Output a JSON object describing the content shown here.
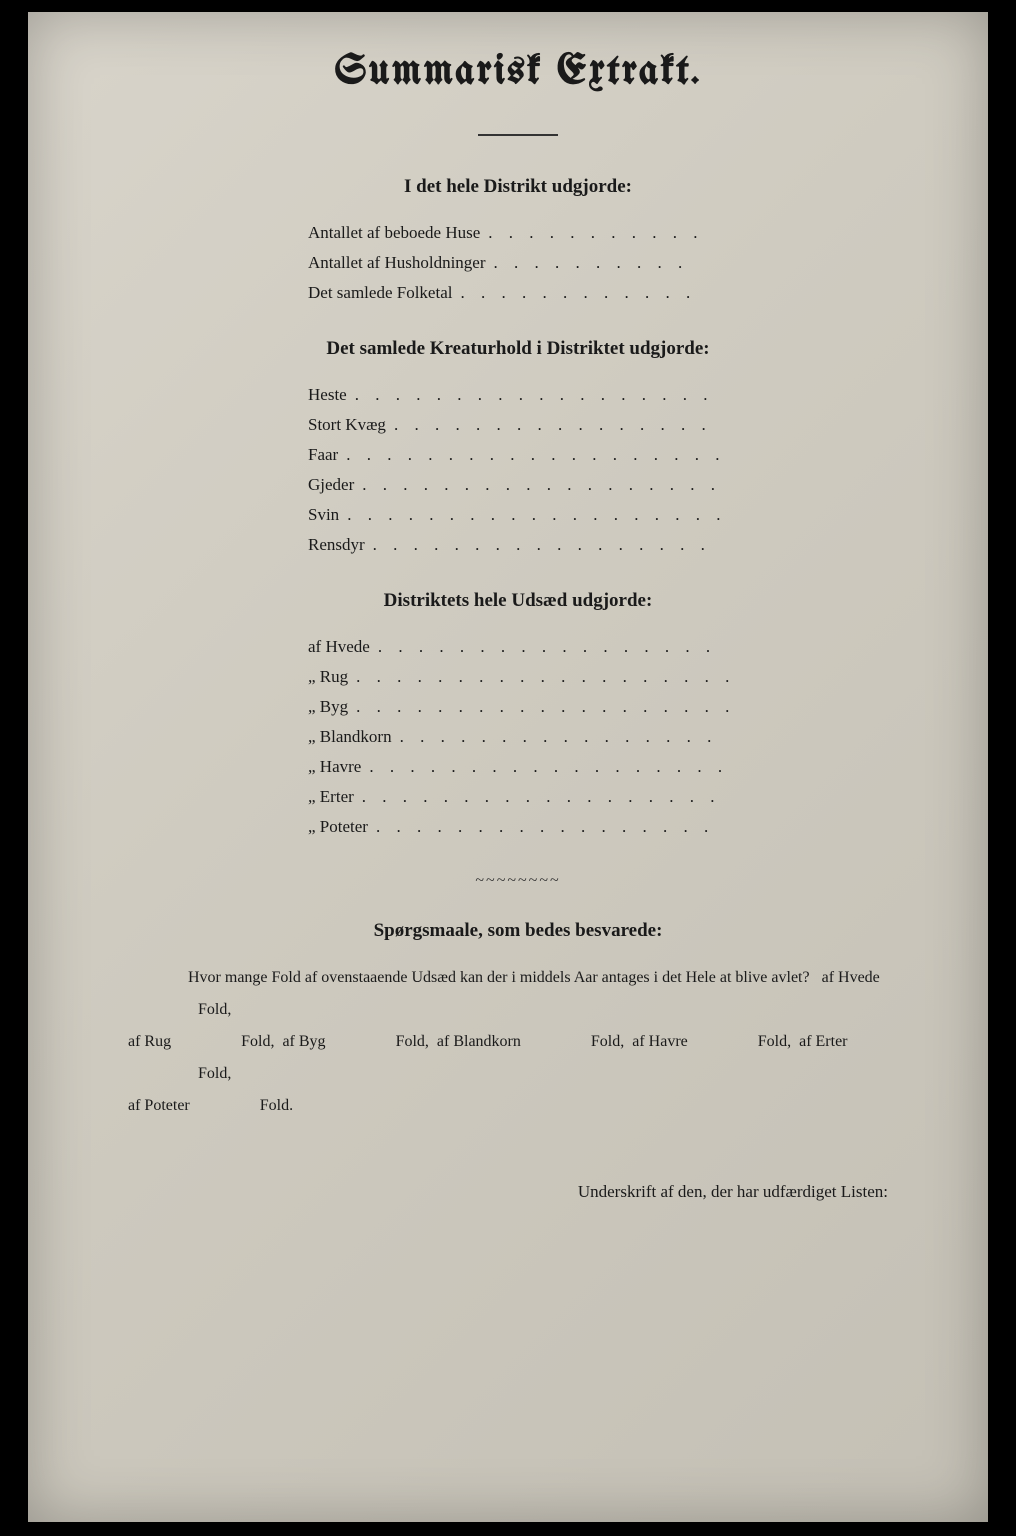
{
  "title": "Summarisk Extrakt.",
  "section1": {
    "heading": "I det hele Distrikt udgjorde:",
    "items": [
      "Antallet af beboede Huse",
      "Antallet af Husholdninger",
      "Det samlede Folketal"
    ]
  },
  "section2": {
    "heading": "Det samlede Kreaturhold i Distriktet udgjorde:",
    "items": [
      "Heste",
      "Stort Kvæg",
      "Faar",
      "Gjeder",
      "Svin",
      "Rensdyr"
    ]
  },
  "section3": {
    "heading": "Distriktets hele Udsæd udgjorde:",
    "items": [
      "af Hvede",
      "„ Rug",
      "„ Byg",
      "„ Blandkorn",
      "„ Havre",
      "„ Erter",
      "„ Poteter"
    ]
  },
  "section4": {
    "heading": "Spørgsmaale, som bedes besvarede:",
    "question_lead": "Hvor mange Fold af ovenstaaende Udsæd kan der i middels Aar antages i det Hele at blive avlet?",
    "parts": [
      "af Hvede",
      "Fold,",
      "af Rug",
      "Fold,",
      "af Byg",
      "Fold,",
      "af Blandkorn",
      "Fold,",
      "af Havre",
      "Fold,",
      "af Erter",
      "Fold,",
      "af Poteter",
      "Fold."
    ]
  },
  "signature": "Underskrift af den, der har udfærdiget Listen:",
  "colors": {
    "page_bg": "#cfcbc0",
    "text": "#1a1a1a",
    "frame": "#000000"
  },
  "fonts": {
    "title": "blackletter",
    "body": "serif"
  }
}
